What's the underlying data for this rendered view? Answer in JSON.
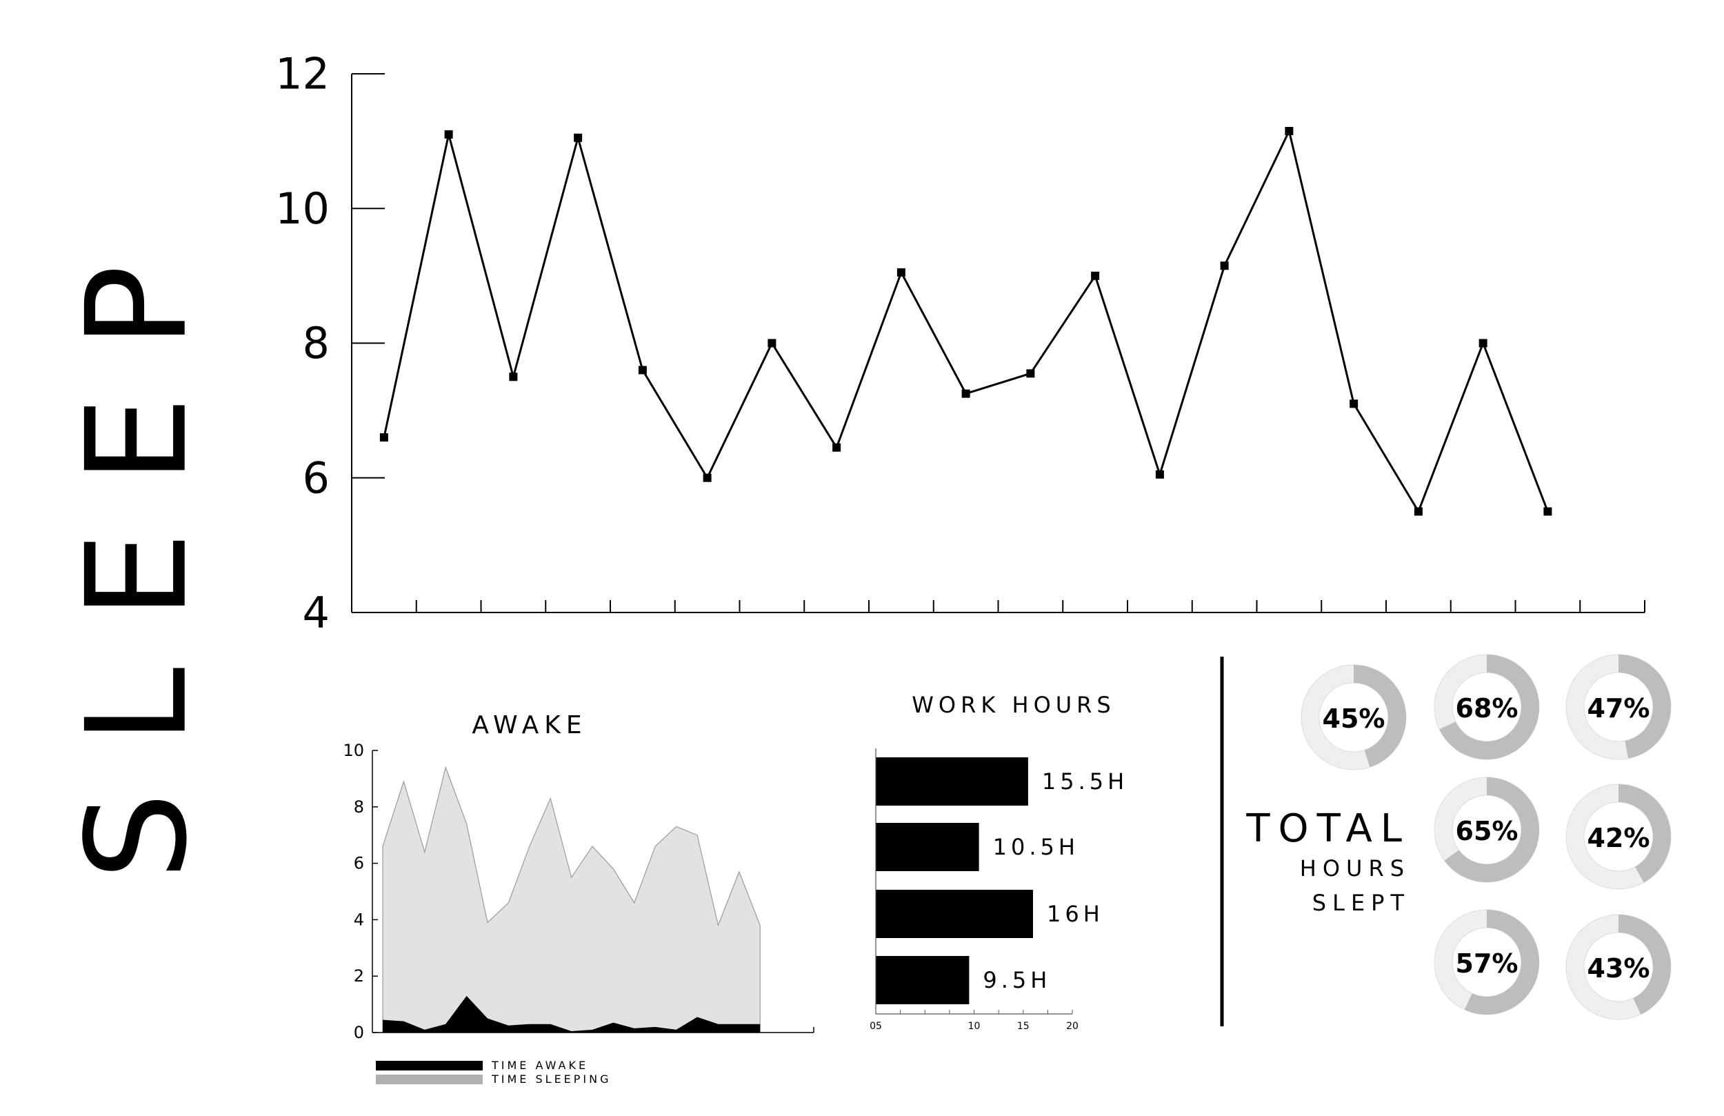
{
  "title": "SLEEP",
  "chart_data": [
    {
      "type": "line",
      "x": [
        1,
        2,
        3,
        4,
        5,
        6,
        7,
        8,
        9,
        10,
        11,
        12,
        13,
        14,
        15,
        16,
        17,
        18,
        19,
        20
      ],
      "series": [
        {
          "values": [
            6.6,
            11.1,
            7.5,
            11.05,
            7.6,
            6.0,
            8.0,
            6.45,
            9.05,
            7.25,
            7.55,
            9.0,
            6.05,
            9.15,
            11.15,
            7.1,
            5.5,
            8.0,
            5.5,
            null
          ]
        }
      ],
      "yticks": [
        "4",
        "6",
        "8",
        "10",
        "12"
      ],
      "ylim": [
        4,
        12
      ],
      "xticks_count": 19,
      "grid": false
    },
    {
      "type": "area",
      "title": "AWAKE",
      "x": [
        1,
        2,
        3,
        4,
        5,
        6,
        7,
        8,
        9,
        10,
        11,
        12,
        13,
        14,
        15,
        16,
        17,
        18,
        19,
        20,
        21
      ],
      "series": [
        {
          "name": "TIME AWAKE",
          "color": "#000000",
          "values": [
            0.45,
            0.4,
            0.1,
            0.3,
            1.3,
            0.5,
            0.25,
            0.3,
            0.3,
            0.05,
            0.1,
            0.35,
            0.15,
            0.2,
            0.1,
            0.55,
            0.3,
            0.3,
            0.3,
            0.3,
            0.3
          ]
        },
        {
          "name": "TIME SLEEPING",
          "color": "#e1e2e3",
          "values": [
            6.6,
            8.9,
            6.4,
            9.4,
            7.4,
            3.9,
            4.6,
            6.6,
            8.3,
            5.5,
            6.6,
            5.8,
            4.6,
            6.6,
            7.3,
            7.0,
            3.8,
            5.7,
            3.8,
            null,
            null
          ]
        }
      ],
      "yticks": [
        "0",
        "2",
        "4",
        "6",
        "8",
        "10"
      ],
      "ylim": [
        0,
        10
      ],
      "legend": "bottom"
    },
    {
      "type": "bar",
      "orientation": "horizontal",
      "title": "WORK HOURS",
      "values": [
        15.5,
        10.5,
        16,
        9.5
      ],
      "labels": [
        "15.5H",
        "10.5H",
        "16H",
        "9.5H"
      ],
      "xticks": [
        "05",
        "10",
        "15",
        "20"
      ],
      "xlim": [
        0,
        20
      ]
    },
    {
      "type": "pie",
      "title": "TOTAL",
      "subtitle_lines": [
        "HOURS",
        "SLEPT"
      ],
      "values": [
        45,
        68,
        47,
        65,
        42,
        57,
        43
      ],
      "labels": [
        "45%",
        "68%",
        "47%",
        "65%",
        "42%",
        "57%",
        "43%"
      ]
    }
  ]
}
